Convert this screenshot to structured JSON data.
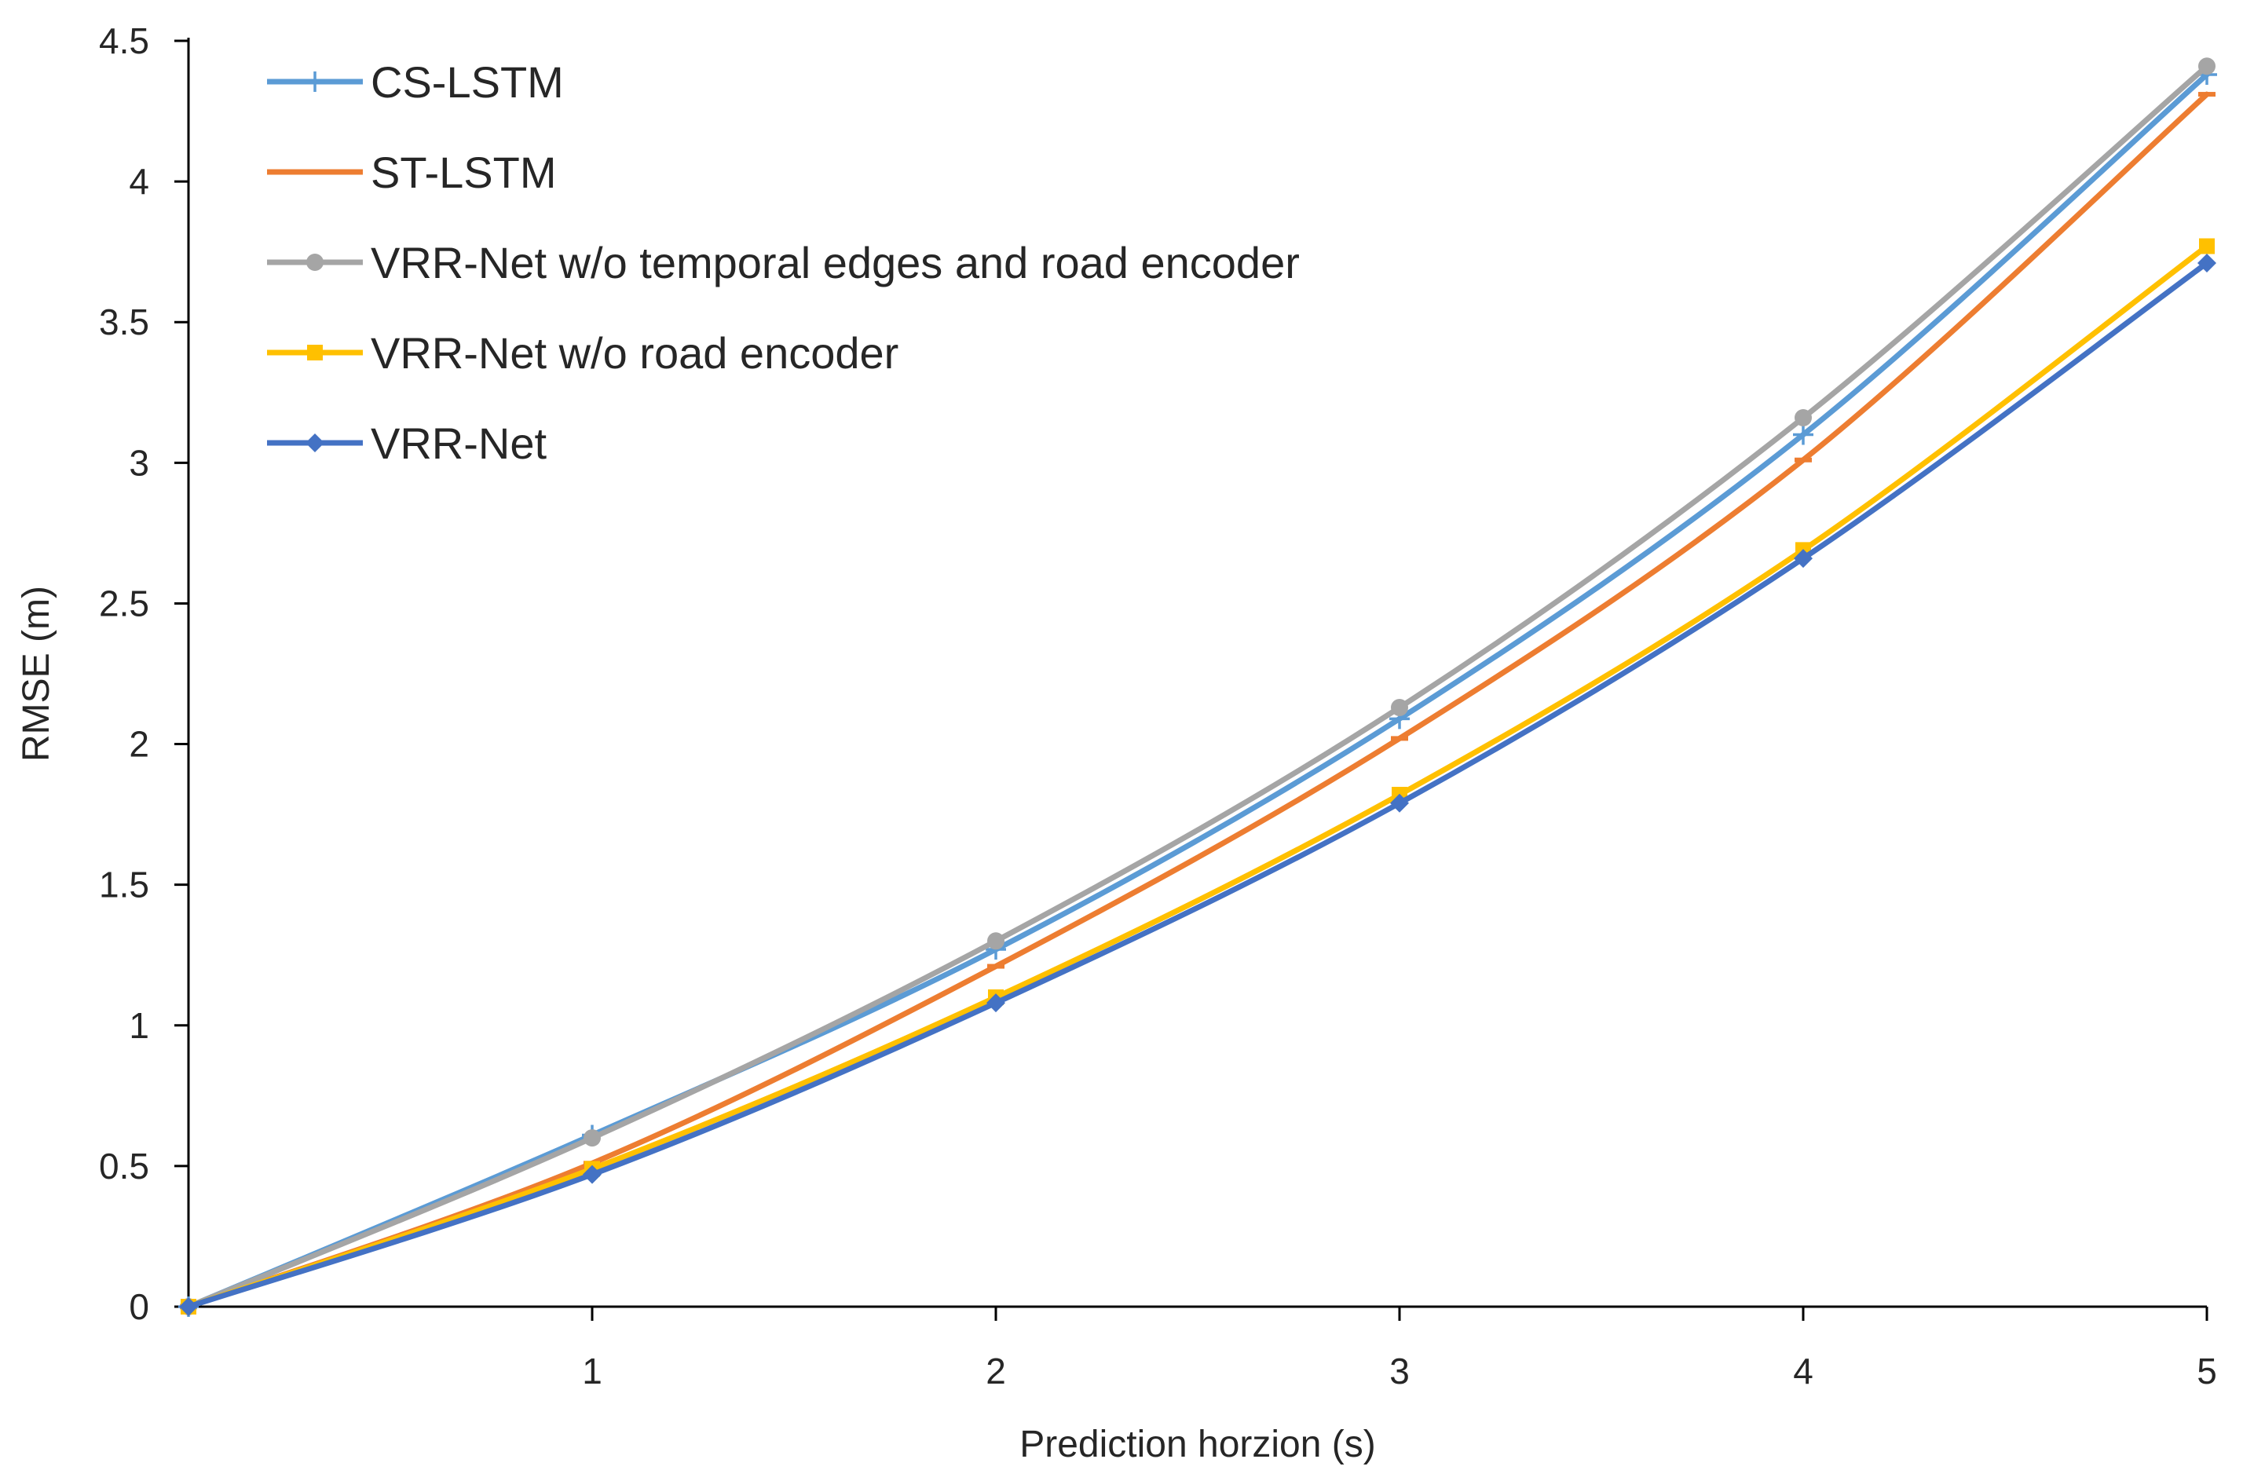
{
  "chart_data": {
    "type": "line",
    "title": "",
    "xlabel": "Prediction horzion (s)",
    "ylabel": "RMSE (m)",
    "x": [
      0,
      1,
      2,
      3,
      4,
      5
    ],
    "x_tick_labels": [
      "1",
      "2",
      "3",
      "4",
      "5"
    ],
    "xlim": [
      0,
      5
    ],
    "ylim": [
      0,
      4.5
    ],
    "y_ticks": [
      0,
      0.5,
      1,
      1.5,
      2,
      2.5,
      3,
      3.5,
      4,
      4.5
    ],
    "y_tick_labels": [
      "0",
      "0.5",
      "1",
      "1.5",
      "2",
      "2.5",
      "3",
      "3.5",
      "4",
      "4.5"
    ],
    "grid": false,
    "smooth": true,
    "legend_position": "top-left",
    "series": [
      {
        "name": "CS-LSTM",
        "color": "#5b9bd5",
        "marker": "plus",
        "values": [
          0,
          0.61,
          1.27,
          2.09,
          3.1,
          4.38
        ]
      },
      {
        "name": "ST-LSTM",
        "color": "#ed7d31",
        "marker": "dash",
        "values": [
          0,
          0.51,
          1.21,
          2.02,
          3.01,
          4.31
        ]
      },
      {
        "name": "VRR-Net w/o temporal edges and road encoder",
        "color": "#a5a5a5",
        "marker": "circle",
        "values": [
          0,
          0.6,
          1.3,
          2.13,
          3.16,
          4.41
        ]
      },
      {
        "name": "VRR-Net w/o road encoder",
        "color": "#ffc000",
        "marker": "square",
        "values": [
          0,
          0.49,
          1.1,
          1.82,
          2.69,
          3.77
        ]
      },
      {
        "name": "VRR-Net",
        "color": "#4472c4",
        "marker": "diamond",
        "values": [
          0,
          0.47,
          1.08,
          1.79,
          2.66,
          3.71
        ]
      }
    ]
  }
}
